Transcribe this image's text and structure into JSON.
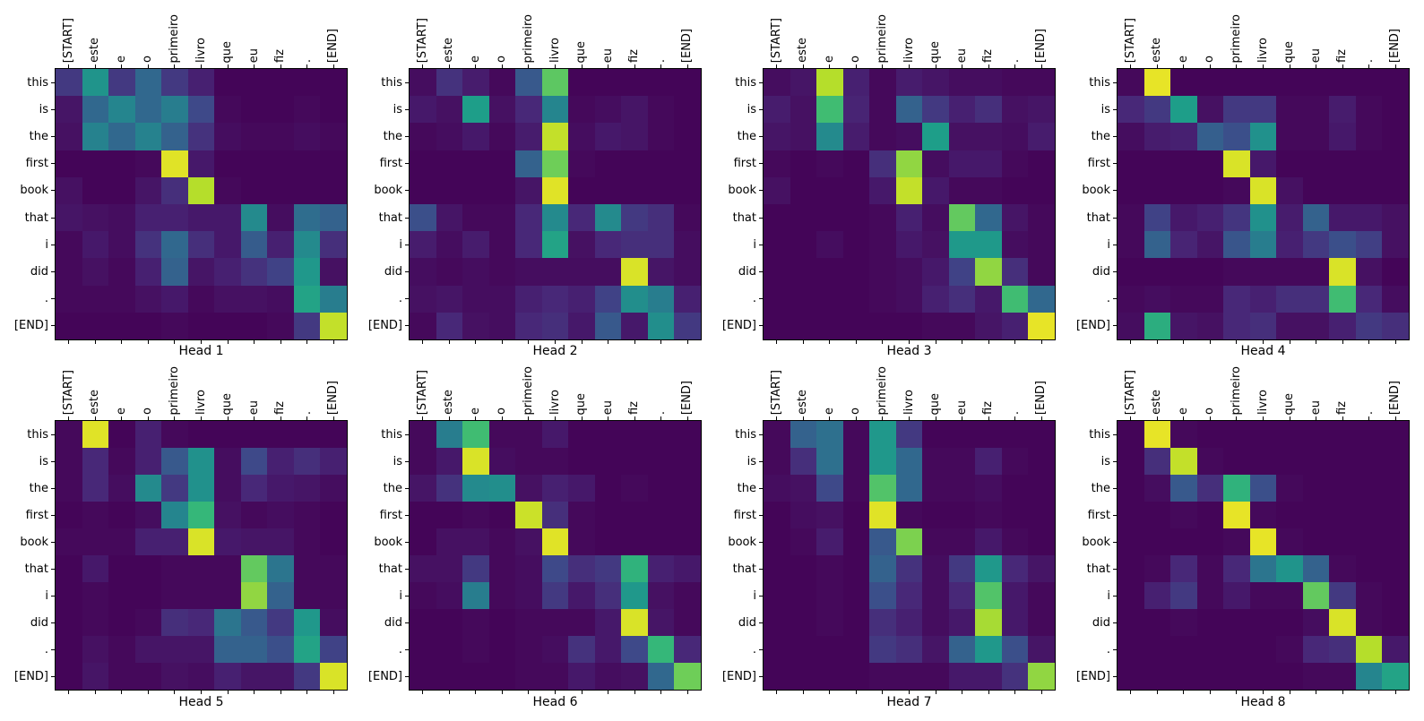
{
  "figure": {
    "background": "#ffffff",
    "text_color": "#000000",
    "frame_color": "#000000"
  },
  "chart_data": {
    "type": "heatmap",
    "subtype": "attention-weights-grid",
    "colormap": "viridis",
    "value_range": [
      0,
      1
    ],
    "grid": {
      "rows": 2,
      "cols": 4
    },
    "colormap_stops": [
      [
        0.0,
        68,
        1,
        84
      ],
      [
        0.1,
        72,
        40,
        120
      ],
      [
        0.2,
        62,
        73,
        137
      ],
      [
        0.3,
        49,
        104,
        142
      ],
      [
        0.4,
        38,
        130,
        142
      ],
      [
        0.5,
        33,
        145,
        140
      ],
      [
        0.6,
        30,
        158,
        137
      ],
      [
        0.7,
        53,
        183,
        121
      ],
      [
        0.8,
        110,
        206,
        88
      ],
      [
        0.9,
        181,
        222,
        43
      ],
      [
        1.0,
        253,
        231,
        37
      ]
    ],
    "x_labels": [
      "[START]",
      "este",
      "e",
      "o",
      "primeiro",
      "livro",
      "que",
      "eu",
      "fiz",
      ".",
      "[END]"
    ],
    "y_labels": [
      "this",
      "is",
      "the",
      "first",
      "book",
      "that",
      "i",
      "did",
      ".",
      "[END]"
    ],
    "heads": [
      {
        "title": "Head 1",
        "values": [
          [
            0.15,
            0.52,
            0.15,
            0.3,
            0.15,
            0.08,
            0.01,
            0.01,
            0.01,
            0.01,
            0.01
          ],
          [
            0.05,
            0.3,
            0.42,
            0.3,
            0.38,
            0.2,
            0.02,
            0.01,
            0.01,
            0.02,
            0.01
          ],
          [
            0.04,
            0.4,
            0.3,
            0.4,
            0.28,
            0.13,
            0.03,
            0.02,
            0.02,
            0.03,
            0.02
          ],
          [
            0.01,
            0.01,
            0.01,
            0.02,
            0.96,
            0.06,
            0.01,
            0.01,
            0.01,
            0.01,
            0.01
          ],
          [
            0.04,
            0.01,
            0.01,
            0.05,
            0.12,
            0.9,
            0.02,
            0.01,
            0.01,
            0.01,
            0.01
          ],
          [
            0.05,
            0.04,
            0.03,
            0.08,
            0.08,
            0.06,
            0.06,
            0.45,
            0.03,
            0.32,
            0.28
          ],
          [
            0.02,
            0.06,
            0.03,
            0.13,
            0.3,
            0.12,
            0.06,
            0.26,
            0.08,
            0.45,
            0.12
          ],
          [
            0.02,
            0.04,
            0.02,
            0.08,
            0.28,
            0.05,
            0.08,
            0.13,
            0.18,
            0.55,
            0.04
          ],
          [
            0.02,
            0.02,
            0.02,
            0.04,
            0.06,
            0.02,
            0.04,
            0.04,
            0.03,
            0.62,
            0.38
          ],
          [
            0.01,
            0.01,
            0.01,
            0.01,
            0.02,
            0.01,
            0.01,
            0.01,
            0.02,
            0.15,
            0.92
          ]
        ]
      },
      {
        "title": "Head 2",
        "values": [
          [
            0.03,
            0.13,
            0.07,
            0.02,
            0.25,
            0.77,
            0.01,
            0.01,
            0.01,
            0.01,
            0.01
          ],
          [
            0.06,
            0.04,
            0.6,
            0.04,
            0.1,
            0.42,
            0.02,
            0.03,
            0.05,
            0.02,
            0.01
          ],
          [
            0.02,
            0.03,
            0.06,
            0.02,
            0.07,
            0.92,
            0.03,
            0.06,
            0.05,
            0.02,
            0.01
          ],
          [
            0.01,
            0.01,
            0.01,
            0.01,
            0.28,
            0.8,
            0.02,
            0.01,
            0.01,
            0.01,
            0.01
          ],
          [
            0.01,
            0.01,
            0.01,
            0.01,
            0.05,
            0.96,
            0.01,
            0.01,
            0.01,
            0.01,
            0.01
          ],
          [
            0.22,
            0.05,
            0.02,
            0.02,
            0.1,
            0.45,
            0.1,
            0.45,
            0.15,
            0.12,
            0.02
          ],
          [
            0.07,
            0.03,
            0.07,
            0.02,
            0.1,
            0.62,
            0.04,
            0.1,
            0.12,
            0.12,
            0.03
          ],
          [
            0.03,
            0.02,
            0.03,
            0.02,
            0.03,
            0.03,
            0.03,
            0.03,
            0.95,
            0.05,
            0.03
          ],
          [
            0.04,
            0.05,
            0.03,
            0.03,
            0.08,
            0.1,
            0.08,
            0.18,
            0.48,
            0.38,
            0.08
          ],
          [
            0.02,
            0.1,
            0.04,
            0.03,
            0.1,
            0.12,
            0.06,
            0.25,
            0.06,
            0.48,
            0.15
          ]
        ]
      },
      {
        "title": "Head 3",
        "values": [
          [
            0.03,
            0.05,
            0.9,
            0.08,
            0.02,
            0.07,
            0.05,
            0.03,
            0.03,
            0.02,
            0.02
          ],
          [
            0.07,
            0.04,
            0.72,
            0.09,
            0.02,
            0.28,
            0.15,
            0.08,
            0.12,
            0.04,
            0.05
          ],
          [
            0.05,
            0.04,
            0.45,
            0.07,
            0.02,
            0.03,
            0.6,
            0.04,
            0.04,
            0.03,
            0.07
          ],
          [
            0.02,
            0.01,
            0.02,
            0.01,
            0.12,
            0.85,
            0.03,
            0.06,
            0.06,
            0.02,
            0.01
          ],
          [
            0.04,
            0.01,
            0.01,
            0.01,
            0.06,
            0.92,
            0.06,
            0.02,
            0.02,
            0.01,
            0.01
          ],
          [
            0.01,
            0.01,
            0.01,
            0.01,
            0.02,
            0.08,
            0.03,
            0.78,
            0.3,
            0.05,
            0.02
          ],
          [
            0.01,
            0.01,
            0.03,
            0.01,
            0.02,
            0.06,
            0.04,
            0.56,
            0.56,
            0.03,
            0.02
          ],
          [
            0.01,
            0.01,
            0.01,
            0.01,
            0.02,
            0.03,
            0.06,
            0.18,
            0.85,
            0.12,
            0.02
          ],
          [
            0.01,
            0.01,
            0.01,
            0.01,
            0.02,
            0.03,
            0.08,
            0.12,
            0.06,
            0.72,
            0.3
          ],
          [
            0.01,
            0.01,
            0.01,
            0.01,
            0.01,
            0.01,
            0.02,
            0.02,
            0.05,
            0.08,
            0.97
          ]
        ]
      },
      {
        "title": "Head 4",
        "values": [
          [
            0.02,
            0.97,
            0.01,
            0.01,
            0.01,
            0.01,
            0.01,
            0.01,
            0.01,
            0.01,
            0.01
          ],
          [
            0.1,
            0.15,
            0.6,
            0.04,
            0.15,
            0.15,
            0.02,
            0.02,
            0.07,
            0.02,
            0.01
          ],
          [
            0.03,
            0.07,
            0.08,
            0.27,
            0.22,
            0.5,
            0.02,
            0.02,
            0.06,
            0.02,
            0.01
          ],
          [
            0.01,
            0.01,
            0.01,
            0.01,
            0.95,
            0.06,
            0.01,
            0.01,
            0.01,
            0.01,
            0.01
          ],
          [
            0.01,
            0.01,
            0.01,
            0.01,
            0.02,
            0.95,
            0.04,
            0.01,
            0.01,
            0.01,
            0.01
          ],
          [
            0.02,
            0.18,
            0.06,
            0.08,
            0.14,
            0.5,
            0.07,
            0.28,
            0.06,
            0.06,
            0.04
          ],
          [
            0.02,
            0.28,
            0.09,
            0.05,
            0.24,
            0.38,
            0.08,
            0.15,
            0.22,
            0.17,
            0.04
          ],
          [
            0.01,
            0.01,
            0.01,
            0.01,
            0.02,
            0.02,
            0.02,
            0.02,
            0.95,
            0.04,
            0.01
          ],
          [
            0.02,
            0.03,
            0.02,
            0.02,
            0.1,
            0.08,
            0.12,
            0.12,
            0.72,
            0.1,
            0.03
          ],
          [
            0.03,
            0.66,
            0.05,
            0.04,
            0.1,
            0.12,
            0.04,
            0.04,
            0.08,
            0.15,
            0.12
          ]
        ]
      },
      {
        "title": "Head 5",
        "values": [
          [
            0.02,
            0.96,
            0.01,
            0.08,
            0.02,
            0.01,
            0.01,
            0.01,
            0.01,
            0.01,
            0.01
          ],
          [
            0.02,
            0.1,
            0.02,
            0.08,
            0.25,
            0.5,
            0.03,
            0.2,
            0.08,
            0.12,
            0.08
          ],
          [
            0.02,
            0.1,
            0.03,
            0.45,
            0.15,
            0.5,
            0.03,
            0.1,
            0.06,
            0.05,
            0.03
          ],
          [
            0.01,
            0.02,
            0.01,
            0.03,
            0.42,
            0.7,
            0.04,
            0.02,
            0.03,
            0.02,
            0.01
          ],
          [
            0.02,
            0.02,
            0.02,
            0.08,
            0.08,
            0.95,
            0.06,
            0.05,
            0.05,
            0.02,
            0.01
          ],
          [
            0.01,
            0.06,
            0.01,
            0.01,
            0.02,
            0.02,
            0.02,
            0.78,
            0.35,
            0.02,
            0.02
          ],
          [
            0.01,
            0.02,
            0.01,
            0.01,
            0.02,
            0.02,
            0.02,
            0.85,
            0.28,
            0.02,
            0.02
          ],
          [
            0.01,
            0.02,
            0.01,
            0.02,
            0.12,
            0.1,
            0.35,
            0.25,
            0.15,
            0.55,
            0.03
          ],
          [
            0.01,
            0.04,
            0.02,
            0.05,
            0.05,
            0.05,
            0.28,
            0.28,
            0.22,
            0.62,
            0.18
          ],
          [
            0.01,
            0.05,
            0.02,
            0.02,
            0.04,
            0.03,
            0.08,
            0.05,
            0.05,
            0.15,
            0.95
          ]
        ]
      },
      {
        "title": "Head 6",
        "values": [
          [
            0.02,
            0.38,
            0.72,
            0.02,
            0.02,
            0.06,
            0.01,
            0.01,
            0.01,
            0.01,
            0.01
          ],
          [
            0.02,
            0.06,
            0.95,
            0.03,
            0.02,
            0.02,
            0.01,
            0.01,
            0.01,
            0.01,
            0.01
          ],
          [
            0.05,
            0.13,
            0.45,
            0.48,
            0.04,
            0.08,
            0.06,
            0.01,
            0.02,
            0.01,
            0.01
          ],
          [
            0.01,
            0.01,
            0.02,
            0.01,
            0.93,
            0.12,
            0.02,
            0.01,
            0.01,
            0.01,
            0.01
          ],
          [
            0.01,
            0.04,
            0.04,
            0.02,
            0.04,
            0.96,
            0.02,
            0.01,
            0.01,
            0.01,
            0.01
          ],
          [
            0.04,
            0.04,
            0.15,
            0.02,
            0.03,
            0.2,
            0.12,
            0.15,
            0.68,
            0.08,
            0.06
          ],
          [
            0.02,
            0.03,
            0.38,
            0.02,
            0.03,
            0.15,
            0.06,
            0.12,
            0.55,
            0.04,
            0.02
          ],
          [
            0.01,
            0.01,
            0.02,
            0.01,
            0.02,
            0.02,
            0.02,
            0.06,
            0.95,
            0.05,
            0.02
          ],
          [
            0.01,
            0.01,
            0.02,
            0.01,
            0.02,
            0.03,
            0.13,
            0.06,
            0.2,
            0.7,
            0.1
          ],
          [
            0.01,
            0.01,
            0.01,
            0.01,
            0.02,
            0.02,
            0.06,
            0.03,
            0.04,
            0.3,
            0.8
          ]
        ]
      },
      {
        "title": "Head 7",
        "values": [
          [
            0.02,
            0.28,
            0.33,
            0.02,
            0.55,
            0.15,
            0.01,
            0.01,
            0.01,
            0.01,
            0.01
          ],
          [
            0.02,
            0.12,
            0.33,
            0.02,
            0.55,
            0.3,
            0.02,
            0.02,
            0.08,
            0.02,
            0.01
          ],
          [
            0.03,
            0.04,
            0.2,
            0.02,
            0.75,
            0.3,
            0.02,
            0.02,
            0.03,
            0.01,
            0.01
          ],
          [
            0.01,
            0.03,
            0.04,
            0.01,
            0.96,
            0.02,
            0.01,
            0.01,
            0.02,
            0.01,
            0.01
          ],
          [
            0.01,
            0.02,
            0.07,
            0.01,
            0.25,
            0.82,
            0.02,
            0.02,
            0.06,
            0.02,
            0.01
          ],
          [
            0.01,
            0.01,
            0.02,
            0.01,
            0.28,
            0.13,
            0.03,
            0.15,
            0.55,
            0.1,
            0.05
          ],
          [
            0.01,
            0.01,
            0.02,
            0.01,
            0.22,
            0.1,
            0.03,
            0.1,
            0.75,
            0.06,
            0.02
          ],
          [
            0.01,
            0.01,
            0.02,
            0.01,
            0.12,
            0.08,
            0.03,
            0.06,
            0.88,
            0.06,
            0.02
          ],
          [
            0.01,
            0.01,
            0.01,
            0.01,
            0.15,
            0.12,
            0.05,
            0.28,
            0.55,
            0.22,
            0.05
          ],
          [
            0.01,
            0.01,
            0.01,
            0.01,
            0.02,
            0.02,
            0.02,
            0.06,
            0.06,
            0.13,
            0.85
          ]
        ]
      },
      {
        "title": "Head 8",
        "values": [
          [
            0.01,
            0.97,
            0.02,
            0.01,
            0.01,
            0.01,
            0.01,
            0.01,
            0.01,
            0.01,
            0.01
          ],
          [
            0.01,
            0.12,
            0.92,
            0.02,
            0.01,
            0.01,
            0.01,
            0.01,
            0.01,
            0.01,
            0.01
          ],
          [
            0.01,
            0.03,
            0.25,
            0.12,
            0.68,
            0.22,
            0.02,
            0.01,
            0.01,
            0.01,
            0.01
          ],
          [
            0.01,
            0.01,
            0.02,
            0.01,
            0.97,
            0.02,
            0.01,
            0.01,
            0.01,
            0.01,
            0.01
          ],
          [
            0.01,
            0.01,
            0.01,
            0.01,
            0.02,
            0.97,
            0.02,
            0.01,
            0.01,
            0.01,
            0.01
          ],
          [
            0.01,
            0.02,
            0.1,
            0.02,
            0.1,
            0.35,
            0.52,
            0.28,
            0.02,
            0.01,
            0.01
          ],
          [
            0.01,
            0.08,
            0.15,
            0.02,
            0.06,
            0.02,
            0.02,
            0.78,
            0.15,
            0.02,
            0.01
          ],
          [
            0.01,
            0.01,
            0.02,
            0.01,
            0.01,
            0.01,
            0.01,
            0.03,
            0.95,
            0.02,
            0.01
          ],
          [
            0.01,
            0.01,
            0.01,
            0.01,
            0.01,
            0.01,
            0.02,
            0.1,
            0.12,
            0.9,
            0.06
          ],
          [
            0.01,
            0.01,
            0.01,
            0.01,
            0.01,
            0.01,
            0.01,
            0.02,
            0.02,
            0.42,
            0.62
          ]
        ]
      }
    ]
  }
}
